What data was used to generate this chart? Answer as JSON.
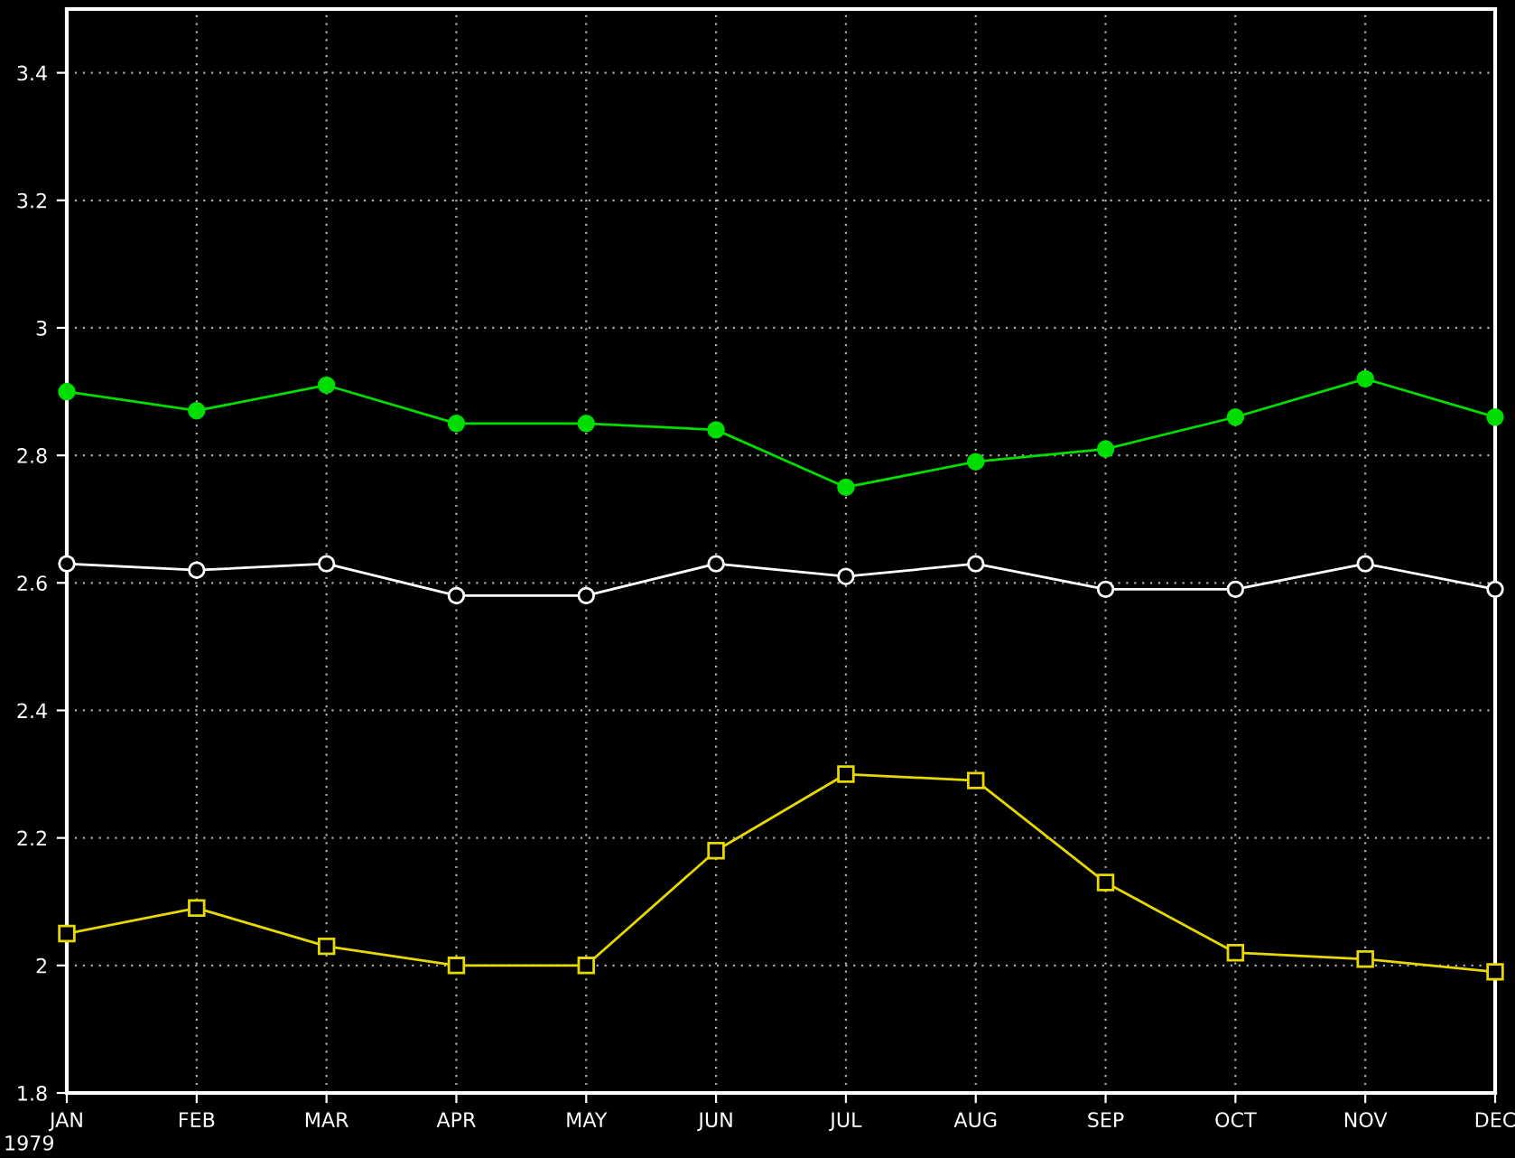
{
  "chart_data": {
    "type": "line",
    "categories": [
      "JAN",
      "FEB",
      "MAR",
      "APR",
      "MAY",
      "JUN",
      "JUL",
      "AUG",
      "SEP",
      "OCT",
      "NOV",
      "DEC"
    ],
    "series": [
      {
        "color": "#00dd00",
        "marker": "circle",
        "values": [
          2.9,
          2.87,
          2.91,
          2.85,
          2.85,
          2.84,
          2.75,
          2.79,
          2.81,
          2.86,
          2.92,
          2.86
        ]
      },
      {
        "color": "#ffffff",
        "marker": "circle",
        "values": [
          2.63,
          2.62,
          2.63,
          2.58,
          2.58,
          2.63,
          2.61,
          2.63,
          2.59,
          2.59,
          2.63,
          2.59
        ]
      },
      {
        "color": "#e6d800",
        "marker": "square",
        "values": [
          2.05,
          2.09,
          2.03,
          2.0,
          2.0,
          2.18,
          2.3,
          2.29,
          2.13,
          2.02,
          2.01,
          1.99
        ]
      }
    ],
    "ylim": [
      1.8,
      3.5
    ],
    "yticks": [
      1.8,
      2,
      2.2,
      2.4,
      2.6,
      2.8,
      3,
      3.2,
      3.4
    ],
    "grid": true,
    "annotations": [
      "1979"
    ]
  }
}
